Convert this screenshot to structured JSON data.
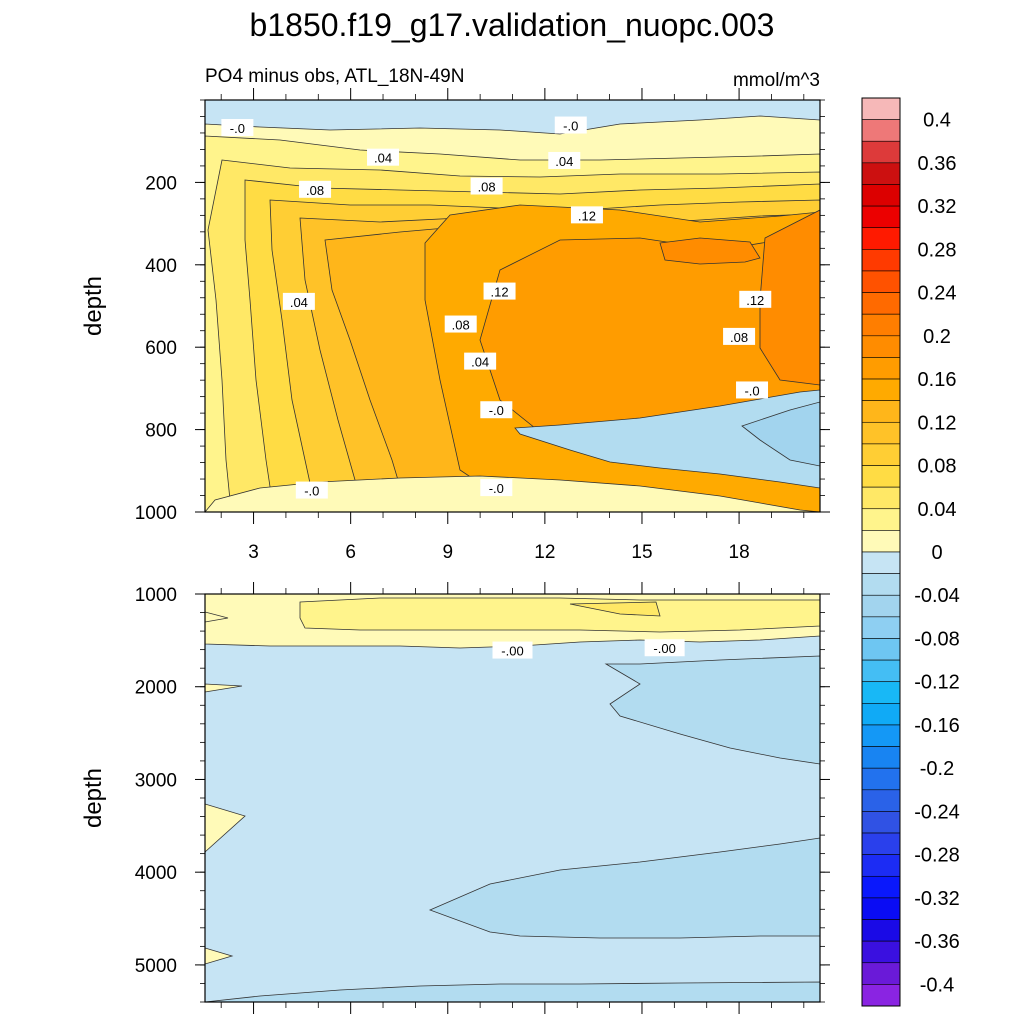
{
  "chart_data": {
    "type": "contour",
    "title": "b1850.f19_g17.validation_nuopc.003",
    "subtitle_left": "PO4 minus obs, ATL_18N-49N",
    "units": "mmol/m^3",
    "xlabel": "",
    "xlim": [
      1.5,
      20.5
    ],
    "x_ticks": [
      3,
      6,
      9,
      12,
      15,
      18
    ],
    "x_tick_labels": [
      "3",
      "6",
      "9",
      "12",
      "15",
      "18"
    ],
    "panels": [
      {
        "name": "upper",
        "ylabel": "depth",
        "ylim": [
          0,
          1000
        ],
        "y_ticks": [
          200,
          400,
          600,
          800,
          1000
        ],
        "y_tick_labels": [
          "200",
          "400",
          "600",
          "800",
          "1000"
        ],
        "contour_labels": [
          {
            "text": "-.0",
            "x": 2.5,
            "y": 68
          },
          {
            "text": "-.0",
            "x": 12.8,
            "y": 62
          },
          {
            "text": ".04",
            "x": 7.0,
            "y": 140
          },
          {
            "text": ".04",
            "x": 12.6,
            "y": 148
          },
          {
            "text": ".08",
            "x": 4.9,
            "y": 218
          },
          {
            "text": ".08",
            "x": 10.2,
            "y": 210
          },
          {
            "text": ".12",
            "x": 13.3,
            "y": 280
          },
          {
            "text": ".12",
            "x": 10.6,
            "y": 465
          },
          {
            "text": ".12",
            "x": 18.5,
            "y": 485
          },
          {
            "text": ".04",
            "x": 4.4,
            "y": 490
          },
          {
            "text": ".08",
            "x": 9.4,
            "y": 545
          },
          {
            "text": ".08",
            "x": 18.0,
            "y": 575
          },
          {
            "text": ".04",
            "x": 10.0,
            "y": 635
          },
          {
            "text": "-.0",
            "x": 18.4,
            "y": 705
          },
          {
            "text": "-.0",
            "x": 10.5,
            "y": 753
          },
          {
            "text": "-.0",
            "x": 4.8,
            "y": 948
          },
          {
            "text": "-.0",
            "x": 10.5,
            "y": 942
          }
        ]
      },
      {
        "name": "lower",
        "ylabel": "depth",
        "ylim": [
          1000,
          5400
        ],
        "y_ticks": [
          1000,
          2000,
          3000,
          4000,
          5000
        ],
        "y_tick_labels": [
          "1000",
          "2000",
          "3000",
          "4000",
          "5000"
        ],
        "contour_labels": [
          {
            "text": "-.00",
            "x": 11.0,
            "y": 1610
          },
          {
            "text": "-.00",
            "x": 15.7,
            "y": 1585
          }
        ]
      }
    ],
    "colorbar": {
      "levels": [
        -0.42,
        -0.4,
        -0.38,
        -0.36,
        -0.34,
        -0.32,
        -0.3,
        -0.28,
        -0.26,
        -0.24,
        -0.22,
        -0.2,
        -0.18,
        -0.16,
        -0.14,
        -0.12,
        -0.1,
        -0.08,
        -0.06,
        -0.04,
        -0.02,
        0,
        0.02,
        0.04,
        0.06,
        0.08,
        0.1,
        0.12,
        0.14,
        0.16,
        0.18,
        0.2,
        0.22,
        0.24,
        0.26,
        0.28,
        0.3,
        0.32,
        0.34,
        0.36,
        0.38,
        0.4,
        0.42
      ],
      "colors": [
        "#f6b8b8",
        "#ee7878",
        "#dd3a3a",
        "#cc1010",
        "#dc0000",
        "#ec0000",
        "#ff1a00",
        "#ff3a00",
        "#ff5200",
        "#ff6a00",
        "#ff7e00",
        "#ff8c00",
        "#ff9c00",
        "#ffaa00",
        "#ffb61a",
        "#ffc228",
        "#ffce34",
        "#ffdc44",
        "#ffe866",
        "#fff48c",
        "#fffab8",
        "#c6e4f4",
        "#b2dcf0",
        "#a2d4ee",
        "#8ecff2",
        "#6ec6f2",
        "#44bef4",
        "#18b8f6",
        "#10aaf6",
        "#1498f6",
        "#1884f2",
        "#2272ee",
        "#2a62e8",
        "#3052e4",
        "#2a40ec",
        "#1c2cf4",
        "#0a18fc",
        "#0a0cf4",
        "#1a0ae6",
        "#3a10e0",
        "#6a1ad8",
        "#8a24e2"
      ],
      "tick_labels": [
        "0.4",
        "0.36",
        "0.32",
        "0.28",
        "0.24",
        "0.2",
        "0.16",
        "0.12",
        "0.08",
        "0.04",
        "0",
        "-0.04",
        "-0.08",
        "-0.12",
        "-0.16",
        "-0.2",
        "-0.24",
        "-0.28",
        "-0.32",
        "-0.36",
        "-0.4"
      ]
    }
  }
}
